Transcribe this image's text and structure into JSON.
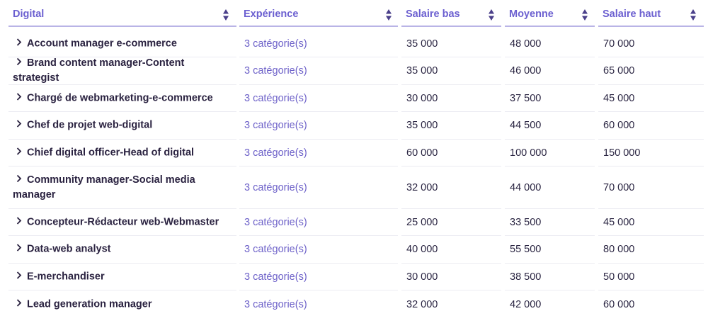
{
  "table": {
    "columns": [
      {
        "label": "Digital"
      },
      {
        "label": "Expérience"
      },
      {
        "label": "Salaire bas"
      },
      {
        "label": "Moyenne"
      },
      {
        "label": "Salaire haut"
      }
    ],
    "rows": [
      {
        "job": "Account manager e-commerce",
        "experience": "3 catégorie(s)",
        "low": "35 000",
        "avg": "48 000",
        "high": "70 000"
      },
      {
        "job": "Brand content manager-Content strategist",
        "experience": "3 catégorie(s)",
        "low": "35 000",
        "avg": "46 000",
        "high": "65 000"
      },
      {
        "job": "Chargé de webmarketing-e-commerce",
        "experience": "3 catégorie(s)",
        "low": "30 000",
        "avg": "37 500",
        "high": "45 000"
      },
      {
        "job": "Chef de projet web-digital",
        "experience": "3 catégorie(s)",
        "low": "35 000",
        "avg": "44 500",
        "high": "60 000"
      },
      {
        "job": "Chief digital officer-Head of digital",
        "experience": "3 catégorie(s)",
        "low": "60 000",
        "avg": "100 000",
        "high": "150 000"
      },
      {
        "job": "Community manager-Social media manager",
        "experience": "3 catégorie(s)",
        "low": "32 000",
        "avg": "44 000",
        "high": "70 000"
      },
      {
        "job": "Concepteur-Rédacteur web-Webmaster",
        "experience": "3 catégorie(s)",
        "low": "25 000",
        "avg": "33 500",
        "high": "45 000"
      },
      {
        "job": "Data-web analyst",
        "experience": "3 catégorie(s)",
        "low": "40 000",
        "avg": "55 500",
        "high": "80 000"
      },
      {
        "job": "E-merchandiser",
        "experience": "3 catégorie(s)",
        "low": "30 000",
        "avg": "38 500",
        "high": "50 000"
      },
      {
        "job": "Lead generation manager",
        "experience": "3 catégorie(s)",
        "low": "32 000",
        "avg": "42 000",
        "high": "60 000"
      }
    ]
  },
  "colors": {
    "header_text": "#6b5fd0",
    "accent_link": "#6e62c9",
    "header_rule": "#b9b4e6",
    "row_rule": "#ececf2",
    "sort_icon": "#4a3f8a"
  }
}
